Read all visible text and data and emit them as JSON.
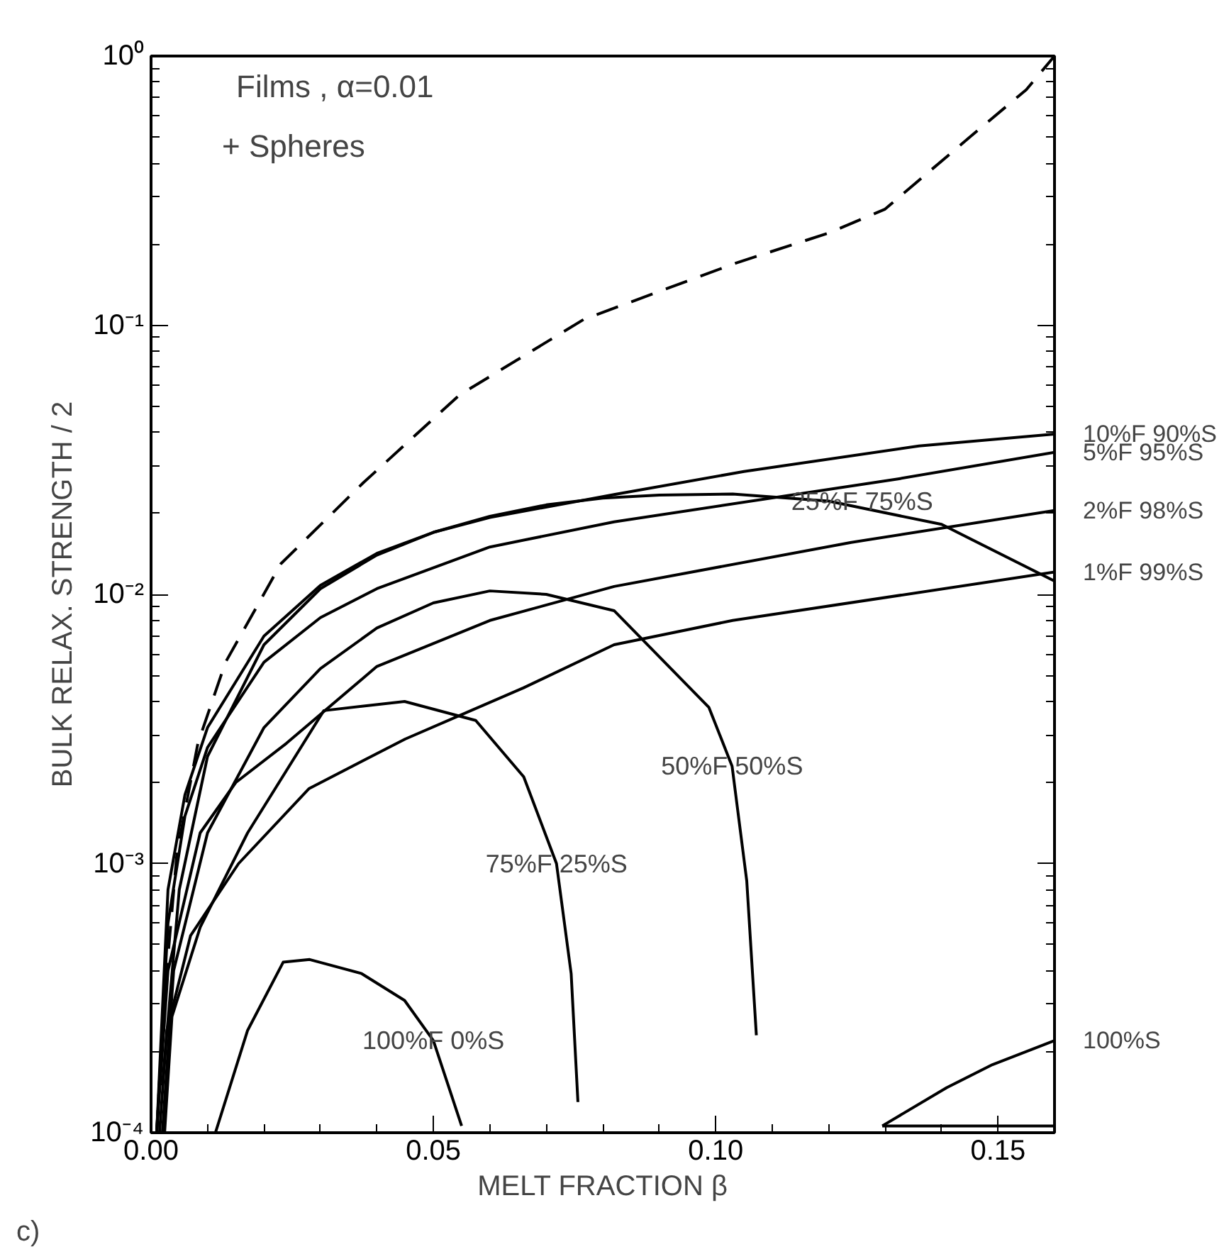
{
  "chart_data": {
    "type": "line",
    "xlabel": "MELT FRACTION β",
    "ylabel": "BULK RELAX. STRENGTH / 2",
    "log": "y",
    "grid": false,
    "legend": "right",
    "marker": "none",
    "xlim": [
      0,
      0.16
    ],
    "ylim": [
      0.0001,
      1
    ],
    "xticks": [
      {
        "value": 0,
        "label": "0.00"
      },
      {
        "value": 0.05,
        "label": "0.05"
      },
      {
        "value": 0.1,
        "label": "0.10"
      },
      {
        "value": 0.15,
        "label": "0.15"
      }
    ],
    "yticks": [
      {
        "value": 0.0001,
        "label": "10⁻⁴"
      },
      {
        "value": 0.001,
        "label": "10⁻³"
      },
      {
        "value": 0.01,
        "label": "10⁻²"
      },
      {
        "value": 0.1,
        "label": "10⁻¹"
      },
      {
        "value": 1,
        "label": "10⁰"
      }
    ],
    "annotations": [
      "Films , α=0.01",
      "+ Spheres",
      "c)"
    ],
    "series": [
      {
        "color": "#000000",
        "line_style": "dashed",
        "x": [
          0.001,
          0.0022,
          0.0046,
          0.0083,
          0.0132,
          0.023,
          0.0376,
          0.0546,
          0.0766,
          0.1035,
          0.12,
          0.13,
          0.145,
          0.155,
          0.16
        ],
        "values": [
          0.0001,
          0.00029,
          0.0011,
          0.0028,
          0.0056,
          0.013,
          0.026,
          0.055,
          0.105,
          0.17,
          0.22,
          0.27,
          0.5,
          0.75,
          1.0
        ]
      },
      {
        "name": "10%F 90%S",
        "color": "#000000",
        "x": [
          0.001,
          0.003,
          0.006,
          0.01,
          0.02,
          0.03,
          0.04,
          0.05,
          0.06,
          0.082,
          0.105,
          0.136,
          0.16
        ],
        "values": [
          0.0001,
          0.0008,
          0.0018,
          0.0032,
          0.007,
          0.0108,
          0.0142,
          0.017,
          0.0193,
          0.0235,
          0.0286,
          0.0356,
          0.0394
        ]
      },
      {
        "name": "5%F 95%S",
        "color": "#000000",
        "x": [
          0.001,
          0.003,
          0.006,
          0.01,
          0.02,
          0.03,
          0.04,
          0.06,
          0.082,
          0.1325,
          0.16
        ],
        "values": [
          0.0001,
          0.0006,
          0.0015,
          0.0027,
          0.0056,
          0.0082,
          0.0105,
          0.015,
          0.0186,
          0.0269,
          0.0337
        ]
      },
      {
        "name": "2%F 98%S",
        "color": "#000000",
        "x": [
          0.001,
          0.003,
          0.0087,
          0.015,
          0.024,
          0.04,
          0.06,
          0.082,
          0.124,
          0.16
        ],
        "values": [
          0.0001,
          0.0004,
          0.0013,
          0.002,
          0.0028,
          0.0054,
          0.008,
          0.0107,
          0.0156,
          0.0205
        ]
      },
      {
        "name": "1%F 99%S",
        "color": "#000000",
        "x": [
          0.0015,
          0.0028,
          0.007,
          0.0155,
          0.028,
          0.045,
          0.066,
          0.082,
          0.103,
          0.16
        ],
        "values": [
          0.0001,
          0.00024,
          0.00054,
          0.001,
          0.0019,
          0.0029,
          0.0045,
          0.0065,
          0.008,
          0.0121
        ]
      },
      {
        "name": "25%F 75%S",
        "color": "#000000",
        "x": [
          0.002,
          0.005,
          0.01,
          0.02,
          0.03,
          0.04,
          0.05,
          0.06,
          0.07,
          0.08,
          0.09,
          0.103,
          0.12,
          0.14,
          0.16
        ],
        "values": [
          0.00015,
          0.0008,
          0.0025,
          0.0065,
          0.0105,
          0.014,
          0.017,
          0.0195,
          0.0215,
          0.0228,
          0.0234,
          0.0236,
          0.0222,
          0.0182,
          0.0112
        ]
      },
      {
        "name": "50%F 50%S",
        "color": "#000000",
        "x": [
          0.002,
          0.004,
          0.01,
          0.02,
          0.03,
          0.04,
          0.05,
          0.06,
          0.07,
          0.082,
          0.0988,
          0.1029,
          0.1055,
          0.1072
        ],
        "values": [
          0.0001,
          0.0004,
          0.0013,
          0.0032,
          0.0053,
          0.0075,
          0.0093,
          0.0103,
          0.01,
          0.0087,
          0.0038,
          0.0023,
          0.00086,
          0.00023
        ]
      },
      {
        "name": "75%F 25%S",
        "color": "#000000",
        "x": [
          0.0024,
          0.0037,
          0.0087,
          0.0171,
          0.0306,
          0.0449,
          0.0575,
          0.066,
          0.0718,
          0.0744,
          0.0756
        ],
        "values": [
          0.0001,
          0.00027,
          0.00058,
          0.0013,
          0.0037,
          0.004,
          0.0034,
          0.0021,
          0.001,
          0.00039,
          0.00013
        ]
      },
      {
        "name": "100%F 0%S",
        "color": "#000000",
        "x": [
          0.0114,
          0.0171,
          0.0234,
          0.0281,
          0.0373,
          0.0449,
          0.05,
          0.055
        ],
        "values": [
          0.0001,
          0.00024,
          0.00043,
          0.00044,
          0.00039,
          0.00031,
          0.00022,
          0.000106
        ]
      },
      {
        "name": "100%S",
        "color": "#000000",
        "x": [
          0.1295,
          0.1409,
          0.149,
          0.16
        ],
        "values": [
          0.000106,
          0.000147,
          0.000179,
          0.00022
        ]
      },
      {
        "color": "#000000",
        "x": [
          0.1295,
          0.16
        ],
        "values": [
          0.000106,
          0.000106
        ]
      }
    ]
  }
}
